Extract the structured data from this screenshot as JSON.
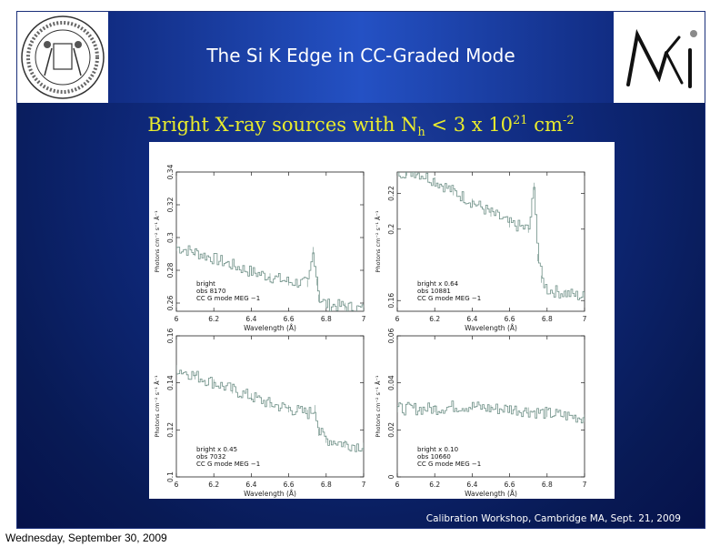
{
  "slide": {
    "title": "The Si K Edge in CC-Graded Mode",
    "subtitle_prefix": "Bright X-ray sources with N",
    "subtitle_sub": "h",
    "subtitle_mid": " < 3 x 10",
    "subtitle_sup1": "21",
    "subtitle_unit": " cm",
    "subtitle_sup2": "-2",
    "footer": "Calibration Workshop, Cambridge MA, Sept. 21, 2009",
    "date": "Wednesday, September 30, 2009",
    "logo_left_icon": "mit-seal-icon",
    "logo_right_icon": "mki-logo-icon",
    "colors": {
      "subtitle": "#e9ec2c",
      "trace": "#6d8f86",
      "banner": "#2451c4"
    }
  },
  "chart_data": [
    {
      "type": "line",
      "xlabel": "Wavelength (Å)",
      "ylabel": "Photons cm⁻² s⁻¹ Å⁻¹",
      "xlim": [
        6,
        7
      ],
      "ylim": [
        0.255,
        0.34
      ],
      "xticks": [
        "6",
        "6.2",
        "6.4",
        "6.6",
        "6.8",
        "7"
      ],
      "yticks": [
        "0.26",
        "0.28",
        "0.3",
        "0.32",
        "0.34"
      ],
      "ytick_values": [
        0.26,
        0.28,
        0.3,
        0.32,
        0.34
      ],
      "annotations": [
        "bright",
        "obs 8170",
        "CC G mode MEG −1"
      ],
      "x": [
        6.0,
        6.1,
        6.2,
        6.3,
        6.4,
        6.5,
        6.6,
        6.7,
        6.73,
        6.75,
        6.76,
        6.8,
        6.9,
        7.0
      ],
      "y": [
        0.294,
        0.291,
        0.287,
        0.283,
        0.279,
        0.276,
        0.273,
        0.272,
        0.292,
        0.273,
        0.263,
        0.259,
        0.258,
        0.256
      ]
    },
    {
      "type": "line",
      "xlabel": "Wavelength (Å)",
      "ylabel": "Photons cm⁻² s⁻¹ Å⁻¹",
      "xlim": [
        6,
        7
      ],
      "ylim": [
        0.154,
        0.232
      ],
      "xticks": [
        "6",
        "6.2",
        "6.4",
        "6.6",
        "6.8",
        "7"
      ],
      "yticks": [
        "0.16",
        "0.2",
        "0.22"
      ],
      "ytick_values": [
        0.16,
        0.2,
        0.22
      ],
      "annotations": [
        "bright x 0.64",
        "obs 10881",
        "CC G mode MEG −1"
      ],
      "x": [
        6.0,
        6.05,
        6.1,
        6.2,
        6.3,
        6.4,
        6.5,
        6.6,
        6.7,
        6.73,
        6.75,
        6.77,
        6.8,
        6.9,
        7.0
      ],
      "y": [
        0.232,
        0.232,
        0.232,
        0.227,
        0.221,
        0.215,
        0.209,
        0.203,
        0.2,
        0.224,
        0.184,
        0.172,
        0.166,
        0.164,
        0.162
      ]
    },
    {
      "type": "line",
      "xlabel": "Wavelength (Å)",
      "ylabel": "Photons cm⁻² s⁻¹ Å⁻¹",
      "xlim": [
        6,
        7
      ],
      "ylim": [
        0.1,
        0.16
      ],
      "xticks": [
        "6",
        "6.2",
        "6.4",
        "6.6",
        "6.8",
        "7"
      ],
      "yticks": [
        "0.1",
        "0.12",
        "0.14",
        "0.16"
      ],
      "ytick_values": [
        0.1,
        0.12,
        0.14,
        0.16
      ],
      "annotations": [
        "bright x 0.45",
        "obs 7032",
        "CC G mode MEG −1"
      ],
      "x": [
        6.0,
        6.1,
        6.2,
        6.3,
        6.4,
        6.5,
        6.6,
        6.7,
        6.74,
        6.76,
        6.8,
        6.9,
        7.0
      ],
      "y": [
        0.146,
        0.143,
        0.14,
        0.137,
        0.134,
        0.131,
        0.129,
        0.127,
        0.129,
        0.119,
        0.116,
        0.114,
        0.113
      ]
    },
    {
      "type": "line",
      "xlabel": "Wavelength (Å)",
      "ylabel": "Photons cm⁻² s⁻¹ Å⁻¹",
      "xlim": [
        6,
        7
      ],
      "ylim": [
        0,
        0.06
      ],
      "xticks": [
        "6",
        "6.2",
        "6.4",
        "6.6",
        "6.8",
        "7"
      ],
      "yticks": [
        "0",
        "0.02",
        "0.04",
        "0.06"
      ],
      "ytick_values": [
        0,
        0.02,
        0.04,
        0.06
      ],
      "annotations": [
        "bright x 0.10",
        "obs 10660",
        "CC G mode MEG −1"
      ],
      "x": [
        6.0,
        6.1,
        6.2,
        6.3,
        6.4,
        6.5,
        6.6,
        6.7,
        6.8,
        6.9,
        7.0
      ],
      "y": [
        0.029,
        0.029,
        0.029,
        0.03,
        0.03,
        0.029,
        0.029,
        0.028,
        0.027,
        0.026,
        0.025
      ]
    }
  ]
}
